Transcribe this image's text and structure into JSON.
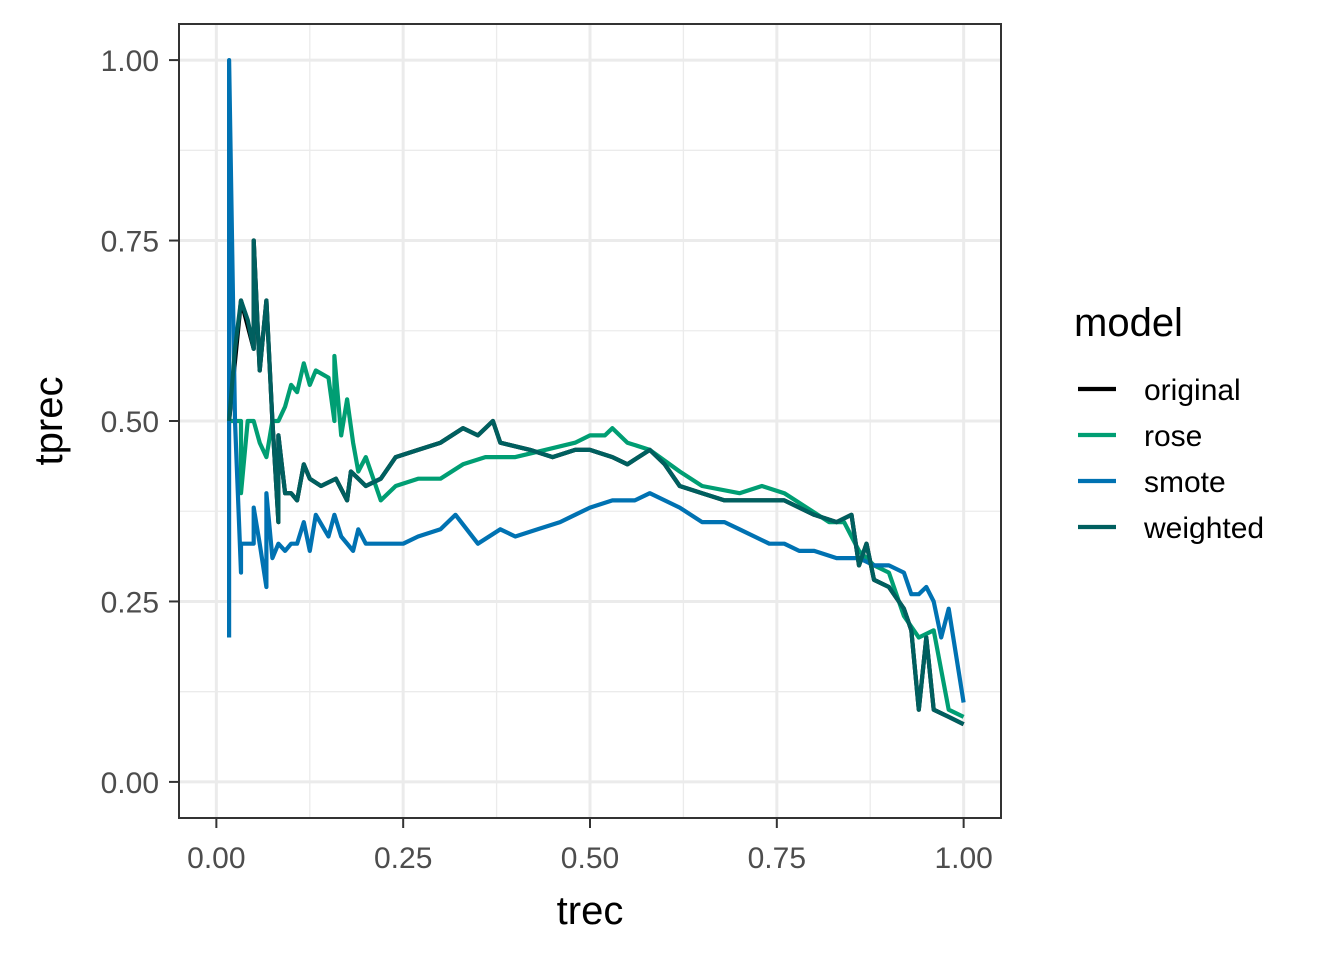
{
  "chart_data": {
    "type": "line",
    "xlabel": "trec",
    "ylabel": "tprec",
    "xlim": [
      -0.05,
      1.05
    ],
    "ylim": [
      -0.05,
      1.05
    ],
    "x_ticks": [
      0.0,
      0.25,
      0.5,
      0.75,
      1.0
    ],
    "x_tick_labels": [
      "0.00",
      "0.25",
      "0.50",
      "0.75",
      "1.00"
    ],
    "y_ticks": [
      0.0,
      0.25,
      0.5,
      0.75,
      1.0
    ],
    "y_tick_labels": [
      "0.00",
      "0.25",
      "0.50",
      "0.75",
      "1.00"
    ],
    "grid": true,
    "legend": {
      "title": "model",
      "position": "right",
      "entries": [
        {
          "name": "original",
          "color": "#000000"
        },
        {
          "name": "rose",
          "color": "#009E73"
        },
        {
          "name": "smote",
          "color": "#0072B2"
        },
        {
          "name": "weighted",
          "color": "#005F5F"
        }
      ]
    },
    "series": [
      {
        "name": "original",
        "color": "#000000",
        "points": [
          [
            0.017,
            0.5
          ],
          [
            0.033,
            0.667
          ],
          [
            0.05,
            0.6
          ],
          [
            0.05,
            0.75
          ],
          [
            0.058,
            0.57
          ],
          [
            0.067,
            0.667
          ],
          [
            0.075,
            0.5
          ],
          [
            0.083,
            0.36
          ],
          [
            0.083,
            0.48
          ],
          [
            0.092,
            0.4
          ],
          [
            0.1,
            0.4
          ],
          [
            0.108,
            0.39
          ],
          [
            0.117,
            0.44
          ],
          [
            0.125,
            0.42
          ],
          [
            0.14,
            0.41
          ],
          [
            0.16,
            0.42
          ],
          [
            0.175,
            0.39
          ],
          [
            0.18,
            0.43
          ],
          [
            0.2,
            0.41
          ],
          [
            0.22,
            0.42
          ],
          [
            0.24,
            0.45
          ],
          [
            0.27,
            0.46
          ],
          [
            0.3,
            0.47
          ],
          [
            0.33,
            0.49
          ],
          [
            0.35,
            0.48
          ],
          [
            0.37,
            0.5
          ],
          [
            0.38,
            0.47
          ],
          [
            0.42,
            0.46
          ],
          [
            0.45,
            0.45
          ],
          [
            0.48,
            0.46
          ],
          [
            0.5,
            0.46
          ],
          [
            0.53,
            0.45
          ],
          [
            0.55,
            0.44
          ],
          [
            0.58,
            0.46
          ],
          [
            0.6,
            0.44
          ],
          [
            0.62,
            0.41
          ],
          [
            0.65,
            0.4
          ],
          [
            0.68,
            0.39
          ],
          [
            0.72,
            0.39
          ],
          [
            0.76,
            0.39
          ],
          [
            0.8,
            0.37
          ],
          [
            0.83,
            0.36
          ],
          [
            0.85,
            0.37
          ],
          [
            0.86,
            0.3
          ],
          [
            0.87,
            0.33
          ],
          [
            0.88,
            0.28
          ],
          [
            0.9,
            0.27
          ],
          [
            0.92,
            0.24
          ],
          [
            0.93,
            0.21
          ],
          [
            0.94,
            0.1
          ],
          [
            0.95,
            0.2
          ],
          [
            0.96,
            0.1
          ],
          [
            0.98,
            0.09
          ],
          [
            1.0,
            0.08
          ]
        ]
      },
      {
        "name": "rose",
        "color": "#009E73",
        "points": [
          [
            0.017,
            0.5
          ],
          [
            0.025,
            0.5
          ],
          [
            0.033,
            0.5
          ],
          [
            0.033,
            0.4
          ],
          [
            0.042,
            0.5
          ],
          [
            0.05,
            0.5
          ],
          [
            0.058,
            0.47
          ],
          [
            0.067,
            0.45
          ],
          [
            0.075,
            0.5
          ],
          [
            0.083,
            0.5
          ],
          [
            0.092,
            0.52
          ],
          [
            0.1,
            0.55
          ],
          [
            0.108,
            0.54
          ],
          [
            0.117,
            0.58
          ],
          [
            0.125,
            0.55
          ],
          [
            0.133,
            0.57
          ],
          [
            0.15,
            0.56
          ],
          [
            0.158,
            0.5
          ],
          [
            0.158,
            0.59
          ],
          [
            0.167,
            0.48
          ],
          [
            0.175,
            0.53
          ],
          [
            0.183,
            0.47
          ],
          [
            0.19,
            0.43
          ],
          [
            0.2,
            0.45
          ],
          [
            0.21,
            0.42
          ],
          [
            0.22,
            0.39
          ],
          [
            0.24,
            0.41
          ],
          [
            0.27,
            0.42
          ],
          [
            0.3,
            0.42
          ],
          [
            0.33,
            0.44
          ],
          [
            0.36,
            0.45
          ],
          [
            0.4,
            0.45
          ],
          [
            0.44,
            0.46
          ],
          [
            0.48,
            0.47
          ],
          [
            0.5,
            0.48
          ],
          [
            0.52,
            0.48
          ],
          [
            0.53,
            0.49
          ],
          [
            0.55,
            0.47
          ],
          [
            0.58,
            0.46
          ],
          [
            0.62,
            0.43
          ],
          [
            0.65,
            0.41
          ],
          [
            0.7,
            0.4
          ],
          [
            0.73,
            0.41
          ],
          [
            0.76,
            0.4
          ],
          [
            0.79,
            0.38
          ],
          [
            0.82,
            0.36
          ],
          [
            0.84,
            0.36
          ],
          [
            0.86,
            0.32
          ],
          [
            0.88,
            0.3
          ],
          [
            0.9,
            0.29
          ],
          [
            0.92,
            0.23
          ],
          [
            0.94,
            0.2
          ],
          [
            0.96,
            0.21
          ],
          [
            0.98,
            0.1
          ],
          [
            1.0,
            0.09
          ]
        ]
      },
      {
        "name": "smote",
        "color": "#0072B2",
        "points": [
          [
            0.017,
            0.2
          ],
          [
            0.017,
            1.0
          ],
          [
            0.025,
            0.5
          ],
          [
            0.033,
            0.29
          ],
          [
            0.033,
            0.33
          ],
          [
            0.042,
            0.33
          ],
          [
            0.05,
            0.33
          ],
          [
            0.05,
            0.38
          ],
          [
            0.058,
            0.33
          ],
          [
            0.067,
            0.27
          ],
          [
            0.067,
            0.4
          ],
          [
            0.075,
            0.31
          ],
          [
            0.083,
            0.33
          ],
          [
            0.092,
            0.32
          ],
          [
            0.1,
            0.33
          ],
          [
            0.108,
            0.33
          ],
          [
            0.117,
            0.36
          ],
          [
            0.125,
            0.32
          ],
          [
            0.133,
            0.37
          ],
          [
            0.15,
            0.34
          ],
          [
            0.158,
            0.37
          ],
          [
            0.167,
            0.34
          ],
          [
            0.183,
            0.32
          ],
          [
            0.19,
            0.35
          ],
          [
            0.2,
            0.33
          ],
          [
            0.22,
            0.33
          ],
          [
            0.25,
            0.33
          ],
          [
            0.27,
            0.34
          ],
          [
            0.3,
            0.35
          ],
          [
            0.32,
            0.37
          ],
          [
            0.35,
            0.33
          ],
          [
            0.38,
            0.35
          ],
          [
            0.4,
            0.34
          ],
          [
            0.43,
            0.35
          ],
          [
            0.46,
            0.36
          ],
          [
            0.48,
            0.37
          ],
          [
            0.5,
            0.38
          ],
          [
            0.53,
            0.39
          ],
          [
            0.56,
            0.39
          ],
          [
            0.58,
            0.4
          ],
          [
            0.6,
            0.39
          ],
          [
            0.62,
            0.38
          ],
          [
            0.65,
            0.36
          ],
          [
            0.68,
            0.36
          ],
          [
            0.7,
            0.35
          ],
          [
            0.72,
            0.34
          ],
          [
            0.74,
            0.33
          ],
          [
            0.76,
            0.33
          ],
          [
            0.78,
            0.32
          ],
          [
            0.8,
            0.32
          ],
          [
            0.83,
            0.31
          ],
          [
            0.86,
            0.31
          ],
          [
            0.88,
            0.3
          ],
          [
            0.9,
            0.3
          ],
          [
            0.92,
            0.29
          ],
          [
            0.93,
            0.26
          ],
          [
            0.94,
            0.26
          ],
          [
            0.95,
            0.27
          ],
          [
            0.96,
            0.25
          ],
          [
            0.97,
            0.2
          ],
          [
            0.98,
            0.24
          ],
          [
            1.0,
            0.11
          ]
        ]
      },
      {
        "name": "weighted",
        "color": "#005F5F",
        "points": [
          [
            0.017,
            0.5
          ],
          [
            0.025,
            0.6
          ],
          [
            0.033,
            0.667
          ],
          [
            0.042,
            0.64
          ],
          [
            0.05,
            0.6
          ],
          [
            0.05,
            0.75
          ],
          [
            0.058,
            0.57
          ],
          [
            0.067,
            0.667
          ],
          [
            0.075,
            0.5
          ],
          [
            0.083,
            0.36
          ],
          [
            0.083,
            0.48
          ],
          [
            0.092,
            0.4
          ],
          [
            0.1,
            0.4
          ],
          [
            0.108,
            0.39
          ],
          [
            0.117,
            0.44
          ],
          [
            0.125,
            0.42
          ],
          [
            0.14,
            0.41
          ],
          [
            0.16,
            0.42
          ],
          [
            0.175,
            0.39
          ],
          [
            0.18,
            0.43
          ],
          [
            0.2,
            0.41
          ],
          [
            0.22,
            0.42
          ],
          [
            0.24,
            0.45
          ],
          [
            0.27,
            0.46
          ],
          [
            0.3,
            0.47
          ],
          [
            0.33,
            0.49
          ],
          [
            0.35,
            0.48
          ],
          [
            0.37,
            0.5
          ],
          [
            0.38,
            0.47
          ],
          [
            0.42,
            0.46
          ],
          [
            0.45,
            0.45
          ],
          [
            0.48,
            0.46
          ],
          [
            0.5,
            0.46
          ],
          [
            0.53,
            0.45
          ],
          [
            0.55,
            0.44
          ],
          [
            0.58,
            0.46
          ],
          [
            0.6,
            0.44
          ],
          [
            0.62,
            0.41
          ],
          [
            0.65,
            0.4
          ],
          [
            0.68,
            0.39
          ],
          [
            0.72,
            0.39
          ],
          [
            0.76,
            0.39
          ],
          [
            0.8,
            0.37
          ],
          [
            0.83,
            0.36
          ],
          [
            0.85,
            0.37
          ],
          [
            0.86,
            0.3
          ],
          [
            0.87,
            0.33
          ],
          [
            0.88,
            0.28
          ],
          [
            0.9,
            0.27
          ],
          [
            0.92,
            0.24
          ],
          [
            0.93,
            0.21
          ],
          [
            0.94,
            0.1
          ],
          [
            0.95,
            0.2
          ],
          [
            0.96,
            0.1
          ],
          [
            0.98,
            0.09
          ],
          [
            1.0,
            0.08
          ]
        ]
      }
    ]
  }
}
